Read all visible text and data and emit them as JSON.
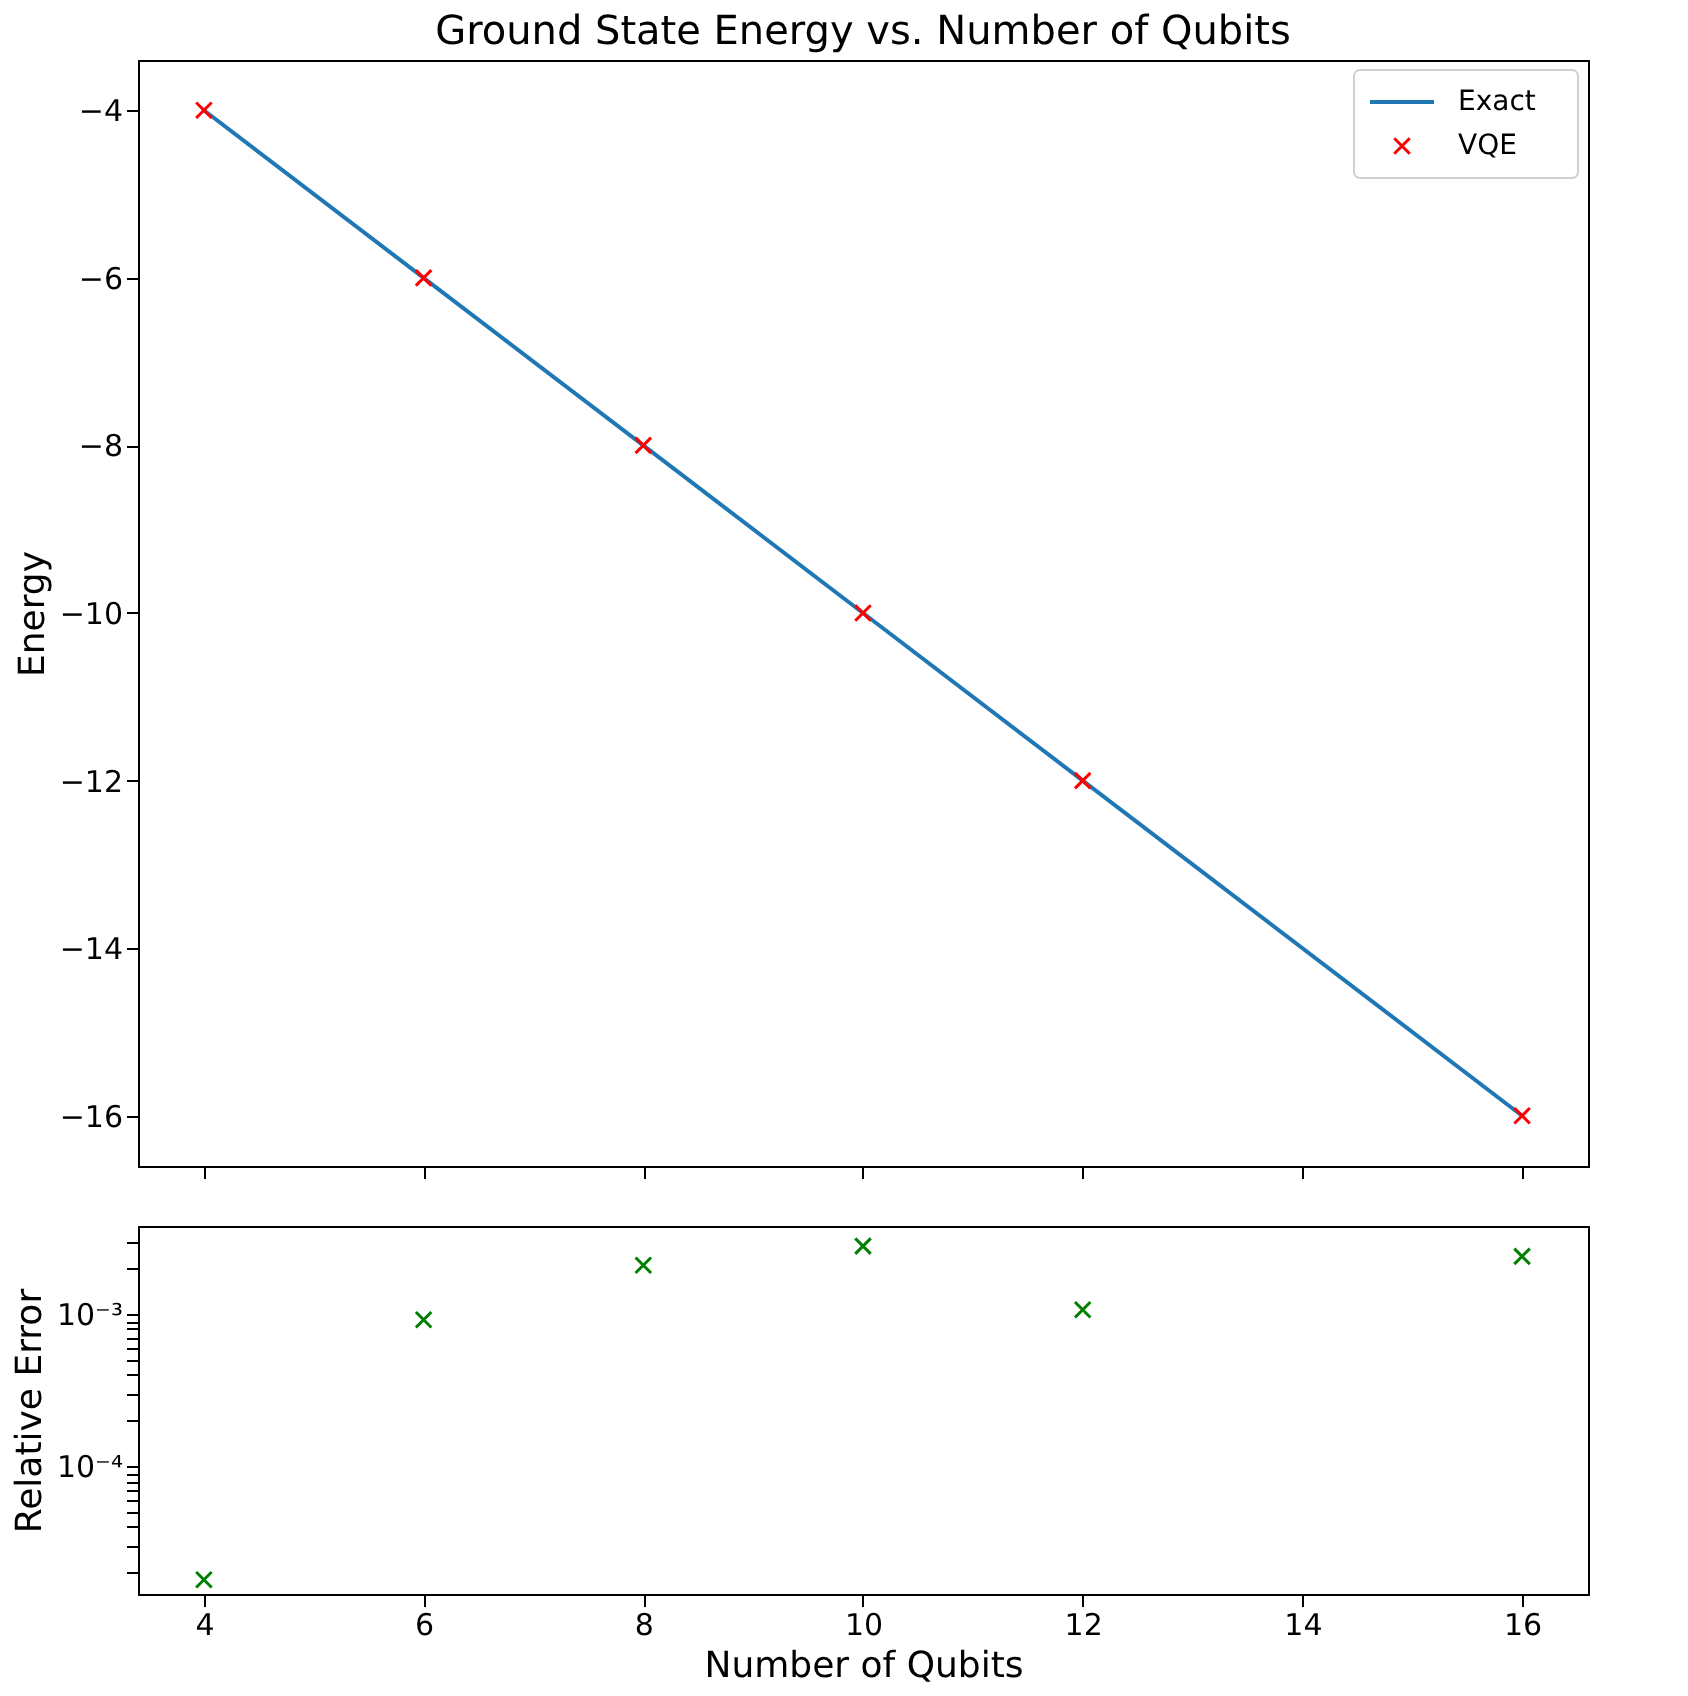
{
  "chart_data": [
    {
      "type": "line",
      "title": "Ground State Energy vs. Number of Qubits",
      "ylabel": "Energy",
      "x": [
        4,
        6,
        8,
        10,
        12,
        16
      ],
      "series": [
        {
          "name": "Exact",
          "color": "#1f77b4",
          "values": [
            -4,
            -6,
            -8,
            -10,
            -12,
            -16
          ]
        },
        {
          "name": "VQE",
          "type": "scatter",
          "marker": "cross",
          "color": "#ff0000",
          "values": [
            -4,
            -6,
            -8,
            -10,
            -12,
            -16
          ]
        }
      ],
      "xlim": [
        3.4,
        16.6
      ],
      "xticks": [
        {
          "value": 4,
          "label": null
        },
        {
          "value": 6,
          "label": null
        },
        {
          "value": 8,
          "label": null
        },
        {
          "value": 10,
          "label": null
        },
        {
          "value": 12,
          "label": null
        },
        {
          "value": 14,
          "label": null
        },
        {
          "value": 16,
          "label": null
        }
      ],
      "ylim": [
        -16.6,
        -3.4
      ],
      "yticks": [
        -4,
        -6,
        -8,
        -10,
        -12,
        -14,
        -16
      ],
      "tick_labels": "y",
      "legend": "top right",
      "grid": false
    },
    {
      "type": "scatter",
      "xlabel": "Number of Qubits",
      "ylabel": "Relative Error",
      "x": [
        4,
        6,
        8,
        10,
        12,
        16
      ],
      "marker": "cross",
      "log": "y",
      "series": [
        {
          "color": "#008000",
          "values": [
            1.8e-05,
            0.00092,
            0.0021,
            0.0028,
            0.00107,
            0.0024
          ]
        }
      ],
      "xlim": [
        3.4,
        16.6
      ],
      "xticks": [
        4,
        6,
        8,
        10,
        12,
        14,
        16
      ],
      "ylim": [
        1.45e-05,
        0.0038
      ],
      "yticks": [
        {
          "value": 2e-05,
          "label": null
        },
        {
          "value": 3e-05,
          "label": null
        },
        {
          "value": 4e-05,
          "label": null
        },
        {
          "value": 5e-05,
          "label": null
        },
        {
          "value": 6e-05,
          "label": null
        },
        {
          "value": 7e-05,
          "label": null
        },
        {
          "value": 8e-05,
          "label": null
        },
        {
          "value": 9e-05,
          "label": null
        },
        {
          "value": 0.0001,
          "label": "10⁻⁴"
        },
        {
          "value": 0.0002,
          "label": null
        },
        {
          "value": 0.0003,
          "label": null
        },
        {
          "value": 0.0004,
          "label": null
        },
        {
          "value": 0.0005,
          "label": null
        },
        {
          "value": 0.0006,
          "label": null
        },
        {
          "value": 0.0007,
          "label": null
        },
        {
          "value": 0.0008,
          "label": null
        },
        {
          "value": 0.0009,
          "label": null
        },
        {
          "value": 0.001,
          "label": "10⁻³"
        },
        {
          "value": 0.002,
          "label": null
        },
        {
          "value": 0.003,
          "label": null
        }
      ],
      "grid": false
    }
  ]
}
